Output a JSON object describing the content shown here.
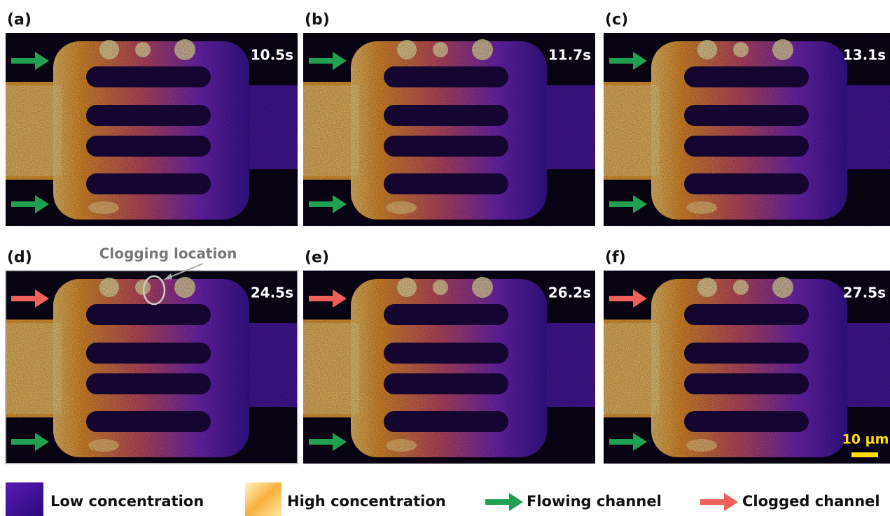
{
  "panels": [
    {
      "label": "(a)",
      "time": "10.5s"
    },
    {
      "label": "(b)",
      "time": "11.7s"
    },
    {
      "label": "(c)",
      "time": "13.1s"
    },
    {
      "label": "(d)",
      "time": "24.5s"
    },
    {
      "label": "(e)",
      "time": "26.2s"
    },
    {
      "label": "(f)",
      "time": "27.5s"
    }
  ],
  "annotation": "Clogging location",
  "scale_bar": "10 µm",
  "legend": [
    {
      "label": "Low concentration"
    },
    {
      "label": "High concentration"
    },
    {
      "label": "Flowing channel"
    },
    {
      "label": "Clogged channel"
    }
  ]
}
